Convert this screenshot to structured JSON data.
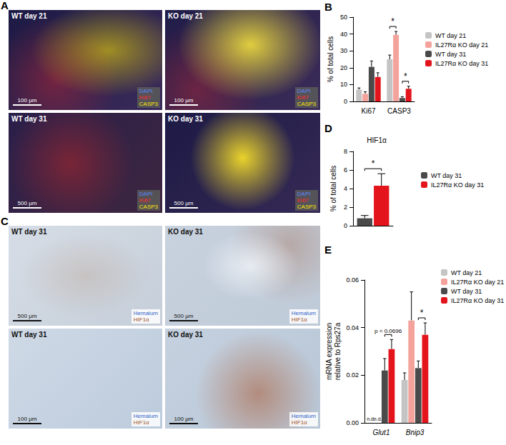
{
  "images": [
    {
      "panel": "A",
      "tiles": [
        {
          "label": "WT day 21",
          "scale_bar": "100 µm"
        },
        {
          "label": "KO day 21",
          "scale_bar": "100 µm"
        },
        {
          "label": "WT day 31",
          "scale_bar": "500 µm"
        },
        {
          "label": "KO day 31",
          "scale_bar": "500 µm"
        }
      ],
      "channels": [
        {
          "name": "DAPI",
          "color": "#5a86ff"
        },
        {
          "name": "Ki67",
          "color": "#ff2a2a"
        },
        {
          "name": "CASP3",
          "color": "#ffe600"
        }
      ]
    },
    {
      "panel": "C",
      "tiles": [
        {
          "label": "WT day 31",
          "scale_bar": "500 µm"
        },
        {
          "label": "KO day 31",
          "scale_bar": "500 µm"
        },
        {
          "label": "WT day 31",
          "scale_bar": "100 µm"
        },
        {
          "label": "KO day 31",
          "scale_bar": "100 µm"
        }
      ],
      "channels": [
        {
          "name": "Hemalum",
          "color": "#2f63c8"
        },
        {
          "name": "HIF1α",
          "color": "#a0522d"
        }
      ]
    }
  ],
  "chart_data": [
    {
      "panel": "B",
      "type": "bar",
      "categories": [
        "Ki67",
        "CASP3"
      ],
      "y_label": "% of total cells",
      "ylim": [
        0,
        50
      ],
      "yticks": [
        0,
        10,
        20,
        30,
        40,
        50
      ],
      "grid": false,
      "legend": "right",
      "series": [
        {
          "name": "WT day 21",
          "color": "#c4c4c4",
          "values": [
            7,
            25
          ],
          "errors": [
            1,
            2.5
          ]
        },
        {
          "name": "IL27Rα KO day 21",
          "color": "#f4a39c",
          "values": [
            4.5,
            39.5
          ],
          "errors": [
            1.2,
            2
          ]
        },
        {
          "name": "WT day 31",
          "color": "#4a4a4a",
          "values": [
            20.5,
            2
          ],
          "errors": [
            3.5,
            0.8
          ]
        },
        {
          "name": "IL27Rα KO day 31",
          "color": "#e3141c",
          "values": [
            14.5,
            7.5
          ],
          "errors": [
            2.5,
            1.5
          ]
        }
      ],
      "annotations": [
        {
          "text": "*",
          "category": "CASP3",
          "between": [
            "WT day 21",
            "IL27Rα KO day 21"
          ]
        },
        {
          "text": "*",
          "category": "CASP3",
          "between": [
            "WT day 31",
            "IL27Rα KO day 31"
          ]
        }
      ]
    },
    {
      "panel": "D",
      "type": "bar",
      "title": "HIF1α",
      "categories": [
        null
      ],
      "y_label": "% of total cells",
      "ylim": [
        0,
        8
      ],
      "yticks": [
        0,
        2,
        4,
        6,
        8
      ],
      "grid": false,
      "legend": "right",
      "series": [
        {
          "name": "WT day 31",
          "color": "#4a4a4a",
          "values": [
            0.8
          ],
          "errors": [
            0.3
          ]
        },
        {
          "name": "IL27Rα KO day 31",
          "color": "#e3141c",
          "values": [
            4.3
          ],
          "errors": [
            1.3
          ]
        }
      ],
      "annotations": [
        {
          "text": "*",
          "category": null,
          "between": [
            "WT day 31",
            "IL27Rα KO day 31"
          ]
        }
      ]
    },
    {
      "panel": "E",
      "type": "bar",
      "categories": [
        "Glut1",
        "Bnip3"
      ],
      "y_label": "mRNA expression\nrelative to Rps27a",
      "ylim": [
        0,
        0.06
      ],
      "yticks": [
        {
          "value": 0,
          "label": "0.00"
        },
        {
          "value": 0.02,
          "label": "0.02"
        },
        {
          "value": 0.04,
          "label": "0.04"
        },
        {
          "value": 0.06,
          "label": "0.06"
        }
      ],
      "grid": false,
      "legend": "right",
      "series": [
        {
          "name": "WT day 21",
          "color": "#c4c4c4",
          "values": [
            null,
            0.018
          ],
          "errors": [
            null,
            0.003
          ]
        },
        {
          "name": "IL27Rα KO day 21",
          "color": "#f4a39c",
          "values": [
            null,
            0.043
          ],
          "errors": [
            null,
            0.012
          ]
        },
        {
          "name": "WT day 31",
          "color": "#4a4a4a",
          "values": [
            0.022,
            0.023
          ],
          "errors": [
            0.005,
            0.003
          ]
        },
        {
          "name": "IL27Rα KO day 31",
          "color": "#e3141c",
          "values": [
            0.031,
            0.037
          ],
          "errors": [
            0.004,
            0.005
          ]
        }
      ],
      "annotations": [
        {
          "text": "n.d.",
          "category": "Glut1",
          "between": [
            "WT day 21"
          ]
        },
        {
          "text": "n.d.",
          "category": "Glut1",
          "between": [
            "IL27Rα KO day 21"
          ]
        },
        {
          "text": "p = 0.0696",
          "category": "Glut1",
          "between": [
            "WT day 31",
            "IL27Rα KO day 31"
          ]
        },
        {
          "text": "*",
          "category": "Bnip3",
          "between": [
            "WT day 31",
            "IL27Rα KO day 31"
          ]
        }
      ]
    }
  ]
}
